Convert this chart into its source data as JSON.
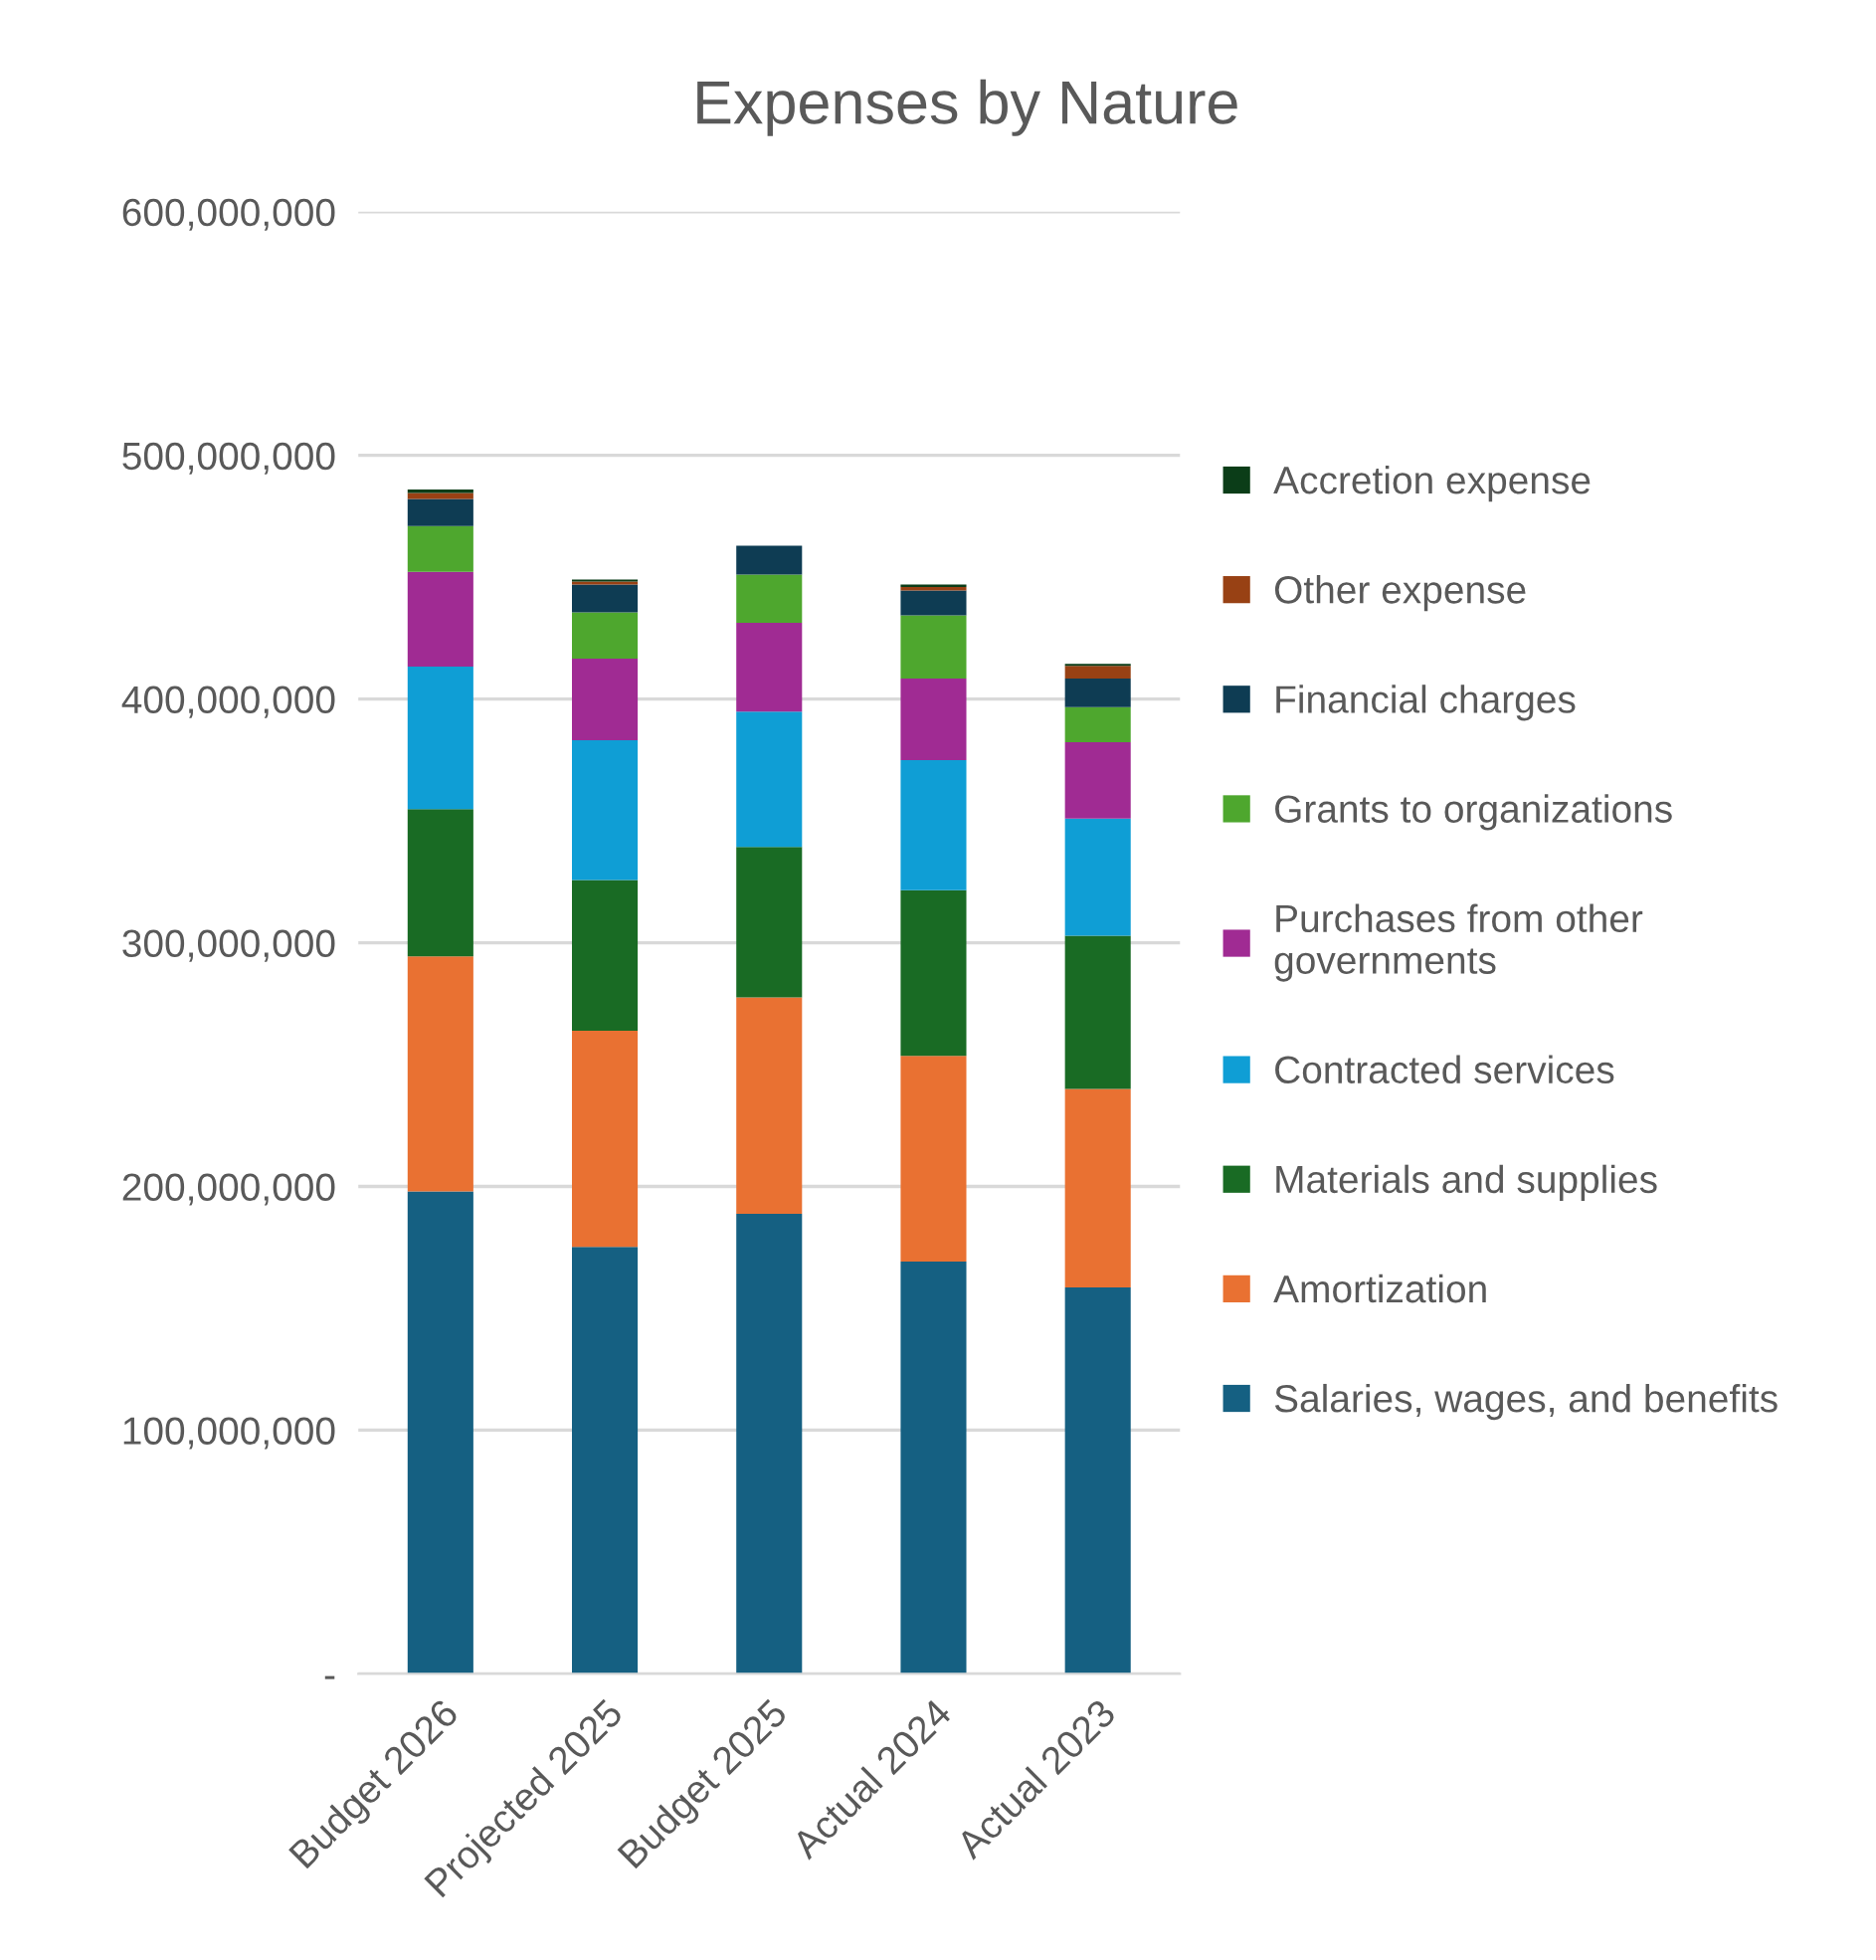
{
  "chart_data": {
    "type": "bar",
    "title": "Expenses by Nature",
    "stacked": true,
    "grid": "y",
    "legend": "right",
    "categories": [
      "Budget 2026",
      "Projected 2025",
      "Budget 2025",
      "Actual 2024",
      "Actual 2023"
    ],
    "ylim": [
      0,
      600000000
    ],
    "yticks": [
      {
        "value": 0,
        "label": "-"
      },
      {
        "value": 100000000,
        "label": "100,000,000"
      },
      {
        "value": 200000000,
        "label": "200,000,000"
      },
      {
        "value": 300000000,
        "label": "300,000,000"
      },
      {
        "value": 400000000,
        "label": "400,000,000"
      },
      {
        "value": 500000000,
        "label": "500,000,000"
      },
      {
        "value": 600000000,
        "label": "600,000,000"
      }
    ],
    "series": [
      {
        "name": "Salaries, wages, and benefits",
        "color": "#156082",
        "values": [
          198000000,
          175200000,
          188800000,
          169200000,
          158600000
        ]
      },
      {
        "name": "Amortization",
        "color": "#e97132",
        "values": [
          96400000,
          88700000,
          88800000,
          84400000,
          81400000
        ]
      },
      {
        "name": "Materials and supplies",
        "color": "#196b24",
        "values": [
          60400000,
          61800000,
          61700000,
          68000000,
          62900000
        ]
      },
      {
        "name": "Contracted services",
        "color": "#0f9ed5",
        "values": [
          58500000,
          57400000,
          55500000,
          53300000,
          48100000
        ]
      },
      {
        "name": "Purchases from other\ngovernments",
        "color": "#a02b93",
        "values": [
          38900000,
          33500000,
          36500000,
          33500000,
          31300000
        ]
      },
      {
        "name": "Grants to organizations",
        "color": "#4ea72e",
        "values": [
          18800000,
          19000000,
          19800000,
          25900000,
          14400000
        ]
      },
      {
        "name": "Financial charges",
        "color": "#0e3c53",
        "values": [
          11100000,
          11400000,
          11800000,
          10300000,
          11700000
        ]
      },
      {
        "name": "Other expense",
        "color": "#984114",
        "values": [
          2500000,
          1200000,
          0,
          1400000,
          5200000
        ]
      },
      {
        "name": "Accretion expense",
        "color": "#0b3d18",
        "values": [
          1400000,
          800000,
          0,
          1000000,
          800000
        ]
      }
    ]
  }
}
